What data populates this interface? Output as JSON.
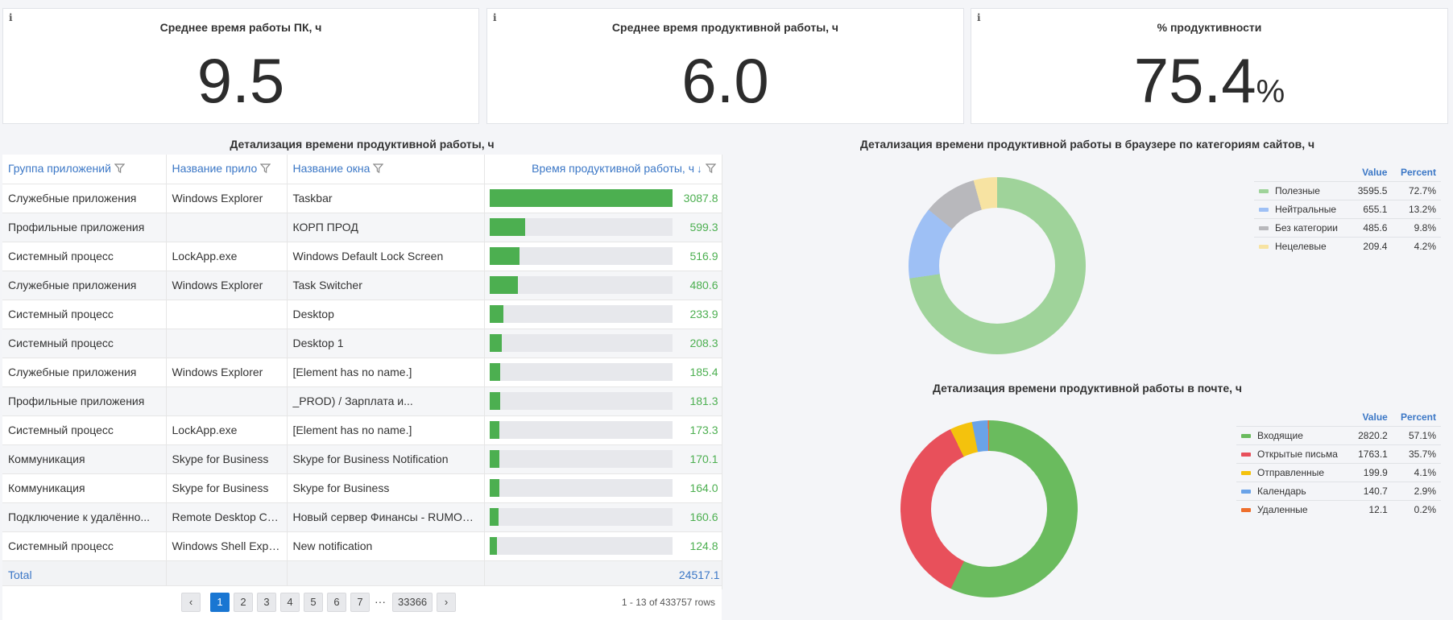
{
  "kpis": [
    {
      "title": "Среднее время работы ПК, ч",
      "value": "9.5",
      "unit": "",
      "info": "i"
    },
    {
      "title": "Среднее время продуктивной работы, ч",
      "value": "6.0",
      "unit": "",
      "info": "i"
    },
    {
      "title": "% продуктивности",
      "value": "75.4",
      "unit": "%",
      "info": "i"
    }
  ],
  "table": {
    "title": "Детализация времени продуктивной работы, ч",
    "columns": [
      "Группа приложений",
      "Название прило",
      "Название окна",
      "Время продуктивной работы, ч"
    ],
    "sort_arrow": "↓",
    "max_value": 3087.8,
    "rows": [
      {
        "group": "Служебные приложения",
        "app": "Windows Explorer",
        "window": "Taskbar",
        "value": 3087.8,
        "value_label": "3087.8"
      },
      {
        "group": "Профильные приложения",
        "app": "",
        "window": "КОРП ПРОД",
        "value": 599.3,
        "value_label": "599.3"
      },
      {
        "group": "Системный процесс",
        "app": "LockApp.exe",
        "window": "Windows Default Lock Screen",
        "value": 516.9,
        "value_label": "516.9"
      },
      {
        "group": "Служебные приложения",
        "app": "Windows Explorer",
        "window": "Task Switcher",
        "value": 480.6,
        "value_label": "480.6"
      },
      {
        "group": "Системный процесс",
        "app": "",
        "window": "Desktop",
        "value": 233.9,
        "value_label": "233.9"
      },
      {
        "group": "Системный процесс",
        "app": "",
        "window": "Desktop 1",
        "value": 208.3,
        "value_label": "208.3"
      },
      {
        "group": "Служебные приложения",
        "app": "Windows Explorer",
        "window": "[Element has no name.]",
        "value": 185.4,
        "value_label": "185.4"
      },
      {
        "group": "Профильные приложения",
        "app": "",
        "window": "_PROD) / Зарплата и...",
        "value": 181.3,
        "value_label": "181.3"
      },
      {
        "group": "Системный процесс",
        "app": "LockApp.exe",
        "window": "[Element has no name.]",
        "value": 173.3,
        "value_label": "173.3"
      },
      {
        "group": "Коммуникация",
        "app": "Skype for Business",
        "window": "Skype for Business Notification",
        "value": 170.1,
        "value_label": "170.1"
      },
      {
        "group": "Коммуникация",
        "app": "Skype for Business",
        "window": "Skype for Business",
        "value": 164.0,
        "value_label": "164.0"
      },
      {
        "group": "Подключение к удалённо...",
        "app": "Remote Desktop Co...",
        "window": "Новый сервер Финансы - RUMOS...",
        "value": 160.6,
        "value_label": "160.6"
      },
      {
        "group": "Системный процесс",
        "app": "Windows Shell Expe...",
        "window": "New notification",
        "value": 124.8,
        "value_label": "124.8"
      }
    ],
    "total_label": "Total",
    "total_value": "24517.1"
  },
  "pagination": {
    "prev": "‹",
    "next": "›",
    "pages": [
      "1",
      "2",
      "3",
      "4",
      "5",
      "6",
      "7"
    ],
    "ellipsis": "···",
    "last": "33366",
    "info": "1 - 13 of 433757 rows"
  },
  "browser_chart": {
    "title": "Детализация времени продуктивной работы в браузере по категориям сайтов, ч",
    "value_header": "Value",
    "percent_header": "Percent",
    "items": [
      {
        "name": "Полезные",
        "value": "3595.5",
        "percent": "72.7%",
        "color": "#9fd39a"
      },
      {
        "name": "Нейтральные",
        "value": "655.1",
        "percent": "13.2%",
        "color": "#9ec0f5"
      },
      {
        "name": "Без категории",
        "value": "485.6",
        "percent": "9.8%",
        "color": "#b8b8bc"
      },
      {
        "name": "Нецелевые",
        "value": "209.4",
        "percent": "4.2%",
        "color": "#f7e3a2"
      }
    ]
  },
  "mail_chart": {
    "title": "Детализация времени продуктивной работы в почте, ч",
    "value_header": "Value",
    "percent_header": "Percent",
    "items": [
      {
        "name": "Входящие",
        "value": "2820.2",
        "percent": "57.1%",
        "color": "#6abb5e"
      },
      {
        "name": "Открытые письма",
        "value": "1763.1",
        "percent": "35.7%",
        "color": "#e8505b"
      },
      {
        "name": "Отправленные",
        "value": "199.9",
        "percent": "4.1%",
        "color": "#f4c20d"
      },
      {
        "name": "Календарь",
        "value": "140.7",
        "percent": "2.9%",
        "color": "#6aa3e8"
      },
      {
        "name": "Удаленные",
        "value": "12.1",
        "percent": "0.2%",
        "color": "#ee6f2d"
      }
    ]
  },
  "chart_data": [
    {
      "type": "pie",
      "title": "Детализация времени продуктивной работы в браузере по категориям сайтов, ч",
      "categories": [
        "Полезные",
        "Нейтральные",
        "Без категории",
        "Нецелевые"
      ],
      "values": [
        3595.5,
        655.1,
        485.6,
        209.4
      ],
      "percents": [
        72.7,
        13.2,
        9.8,
        4.2
      ],
      "legend": "right"
    },
    {
      "type": "pie",
      "title": "Детализация времени продуктивной работы в почте, ч",
      "categories": [
        "Входящие",
        "Открытые письма",
        "Отправленные",
        "Календарь",
        "Удаленные"
      ],
      "values": [
        2820.2,
        1763.1,
        199.9,
        140.7,
        12.1
      ],
      "percents": [
        57.1,
        35.7,
        4.1,
        2.9,
        0.2
      ],
      "legend": "right"
    }
  ]
}
